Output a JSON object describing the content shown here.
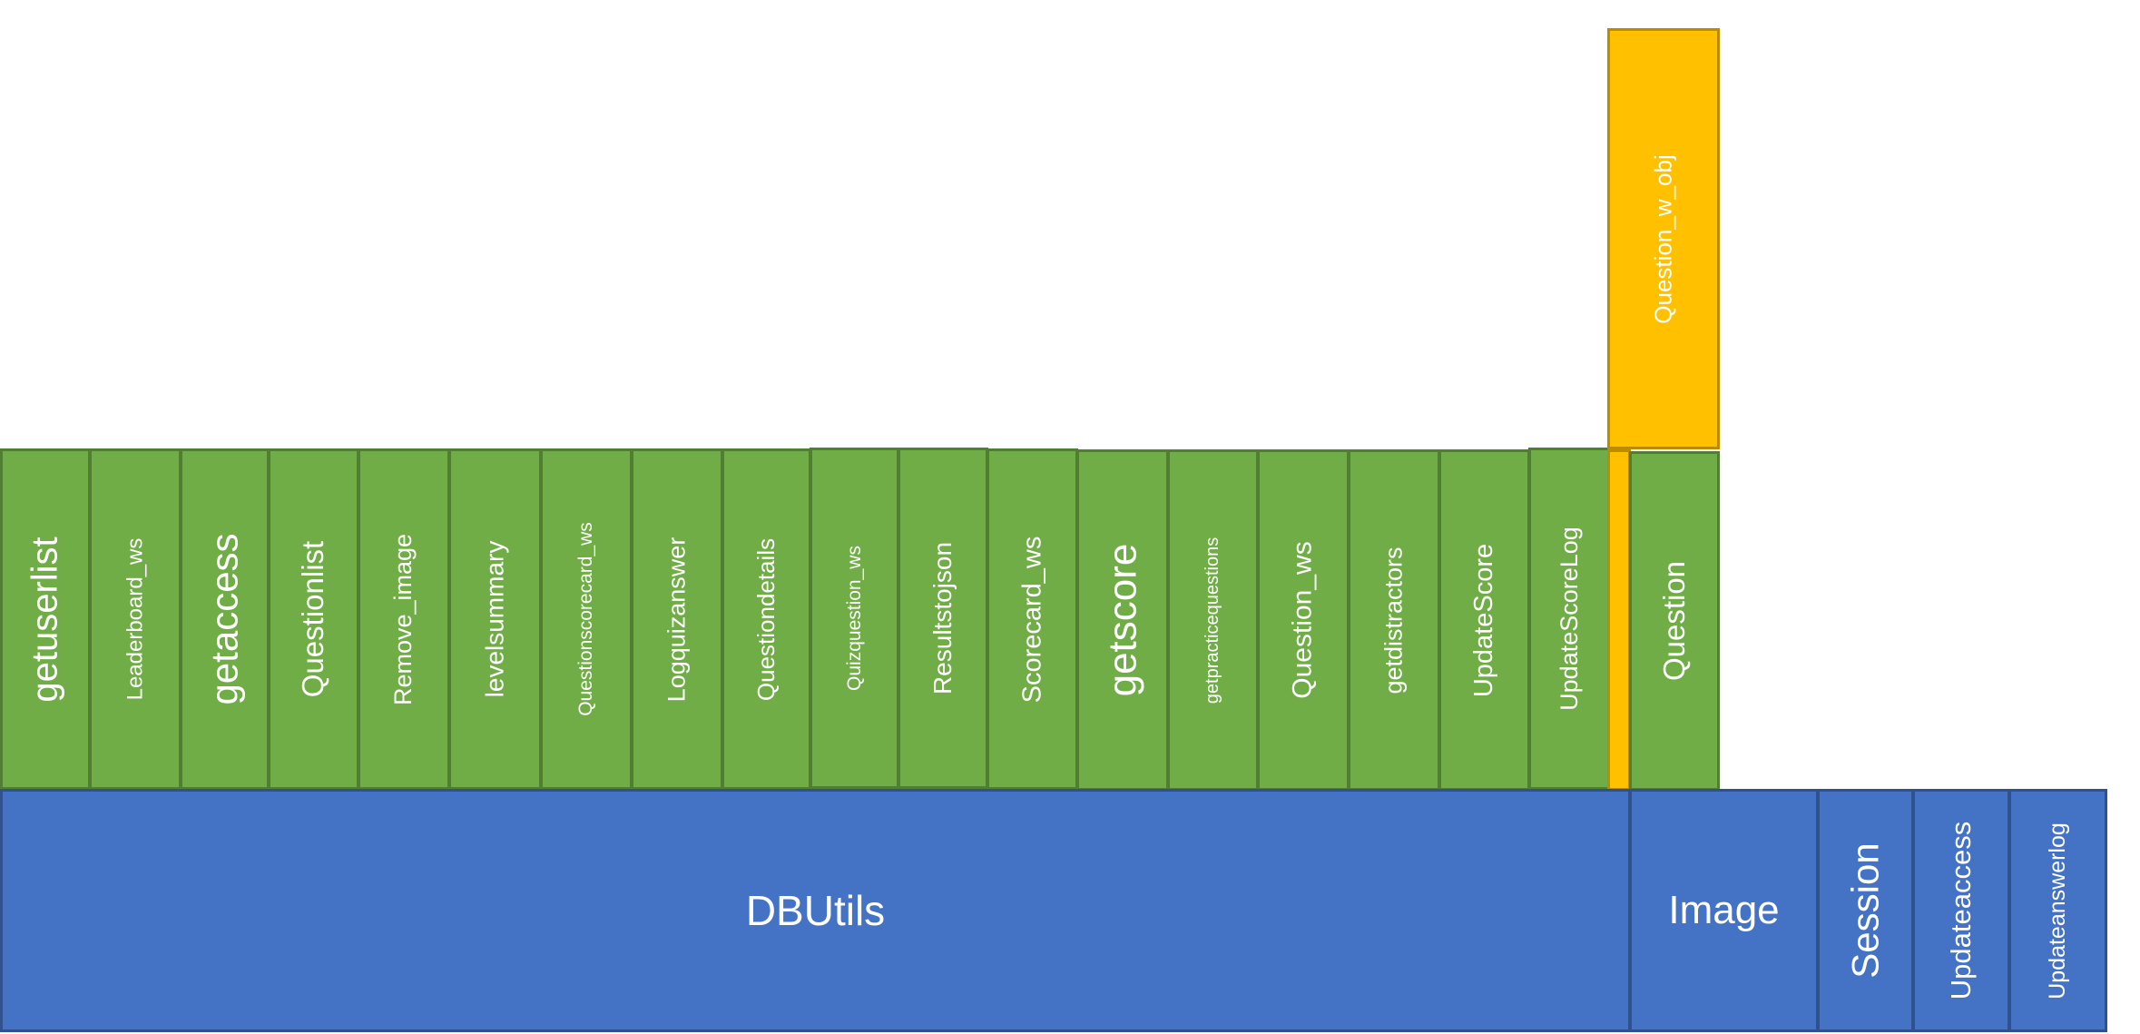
{
  "colors": {
    "module_fill": "#70ad47",
    "module_border": "#507e32",
    "base_fill": "#4472c4",
    "base_border": "#2f528f",
    "highlight_fill": "#ffc000",
    "highlight_border": "#bc8c00",
    "text": "#ffffff"
  },
  "modules": [
    "getuserlist",
    "Leaderboard_ws",
    "getaccess",
    "Questionlist",
    "Remove_image",
    "levelsummary",
    "Questionscorecard_ws",
    "Logquizanswer",
    "Questiondetails",
    "Quizquestion_ws",
    "Resultstojson",
    "Scorecard_ws",
    "getscore",
    "getpracticequestions",
    "Question_ws",
    "getdistractors",
    "UpdateScore",
    "UpdateScoreLog"
  ],
  "question_module": "Question",
  "highlight_module": "Question_w_obj",
  "base": {
    "dbutils": "DBUtils",
    "image": "Image",
    "session": "Session",
    "updateaccess": "Updateaccess",
    "updateanswerlog": "Updateanswerlog"
  }
}
